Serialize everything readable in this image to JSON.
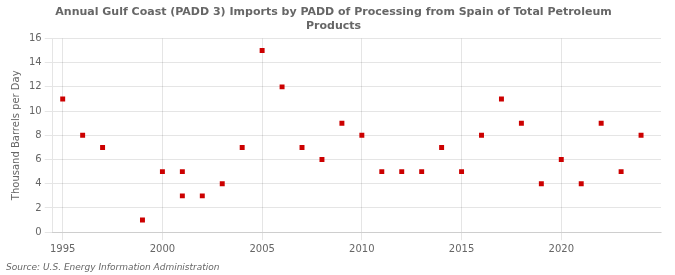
{
  "chart_data": {
    "type": "scatter",
    "title": "Annual Gulf Coast (PADD 3) Imports by PADD of Processing from Spain of Total Petroleum\nProducts",
    "ylabel": "Thousand Barrels per Day",
    "annotations": [
      "Source: U.S. Energy Information Administration"
    ],
    "x": [
      1995,
      1996,
      1997,
      1999,
      2000,
      2001,
      2001,
      2002,
      2003,
      2004,
      2005,
      2006,
      2007,
      2008,
      2009,
      2010,
      2011,
      2012,
      2013,
      2014,
      2015,
      2016,
      2017,
      2018,
      2019,
      2020,
      2021,
      2022,
      2023,
      2024
    ],
    "values": [
      11,
      8,
      7,
      1,
      5,
      5,
      3,
      3,
      4,
      7,
      15,
      12,
      7,
      6,
      9,
      8,
      5,
      5,
      5,
      7,
      5,
      8,
      11,
      9,
      4,
      6,
      4,
      9,
      5,
      8
    ],
    "color": "#cc0000",
    "marker": "square",
    "xlim": [
      1994.5,
      2025
    ],
    "xticks": [
      1995,
      2000,
      2005,
      2010,
      2015,
      2020
    ],
    "ylim": [
      0,
      16
    ],
    "yticks": [
      0,
      2,
      4,
      6,
      8,
      10,
      12,
      14,
      16
    ],
    "grid": true
  }
}
